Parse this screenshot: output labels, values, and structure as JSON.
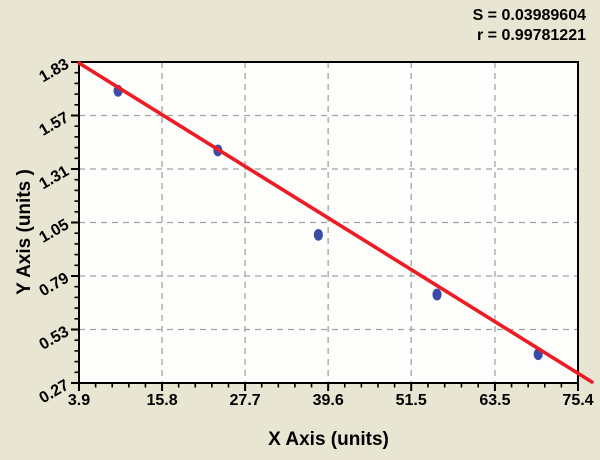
{
  "colors": {
    "background": "#e9e5d3",
    "plot_background": "#fdfdfb",
    "grid": "#a3a3a3",
    "axis": "#000000",
    "fit_line": "#ed1c24",
    "point": "#3b4ca7",
    "text": "#000000"
  },
  "chart_data": {
    "type": "scatter",
    "title": "",
    "xlabel": "X Axis (units)",
    "ylabel": "Y Axis (units )",
    "xlim": [
      3.9,
      75.4
    ],
    "ylim": [
      0.27,
      1.83
    ],
    "x_ticks": [
      3.9,
      15.8,
      27.7,
      39.6,
      51.5,
      63.5,
      75.4
    ],
    "x_tick_labels": [
      "3.9",
      "15.8",
      "27.7",
      "39.6",
      "51.5",
      "63.5",
      "75.4"
    ],
    "y_ticks": [
      1.83,
      1.57,
      1.31,
      1.05,
      0.79,
      0.53,
      0.27
    ],
    "y_tick_labels": [
      "1.83",
      "1.57",
      "1.31",
      "1.05",
      "0.79",
      "0.53",
      "0.27"
    ],
    "minor_divisions": 5,
    "grid": true,
    "legend": false,
    "points": [
      {
        "x": 9.5,
        "y": 1.69
      },
      {
        "x": 23.8,
        "y": 1.4
      },
      {
        "x": 38.2,
        "y": 0.99
      },
      {
        "x": 55.2,
        "y": 0.7
      },
      {
        "x": 69.7,
        "y": 0.41
      }
    ],
    "fit_line": {
      "x1": 3.9,
      "y1": 1.825,
      "x2": 77.4,
      "y2": 0.275
    },
    "annotations": [
      "S = 0.03989604",
      "r = 0.99781221"
    ],
    "fit_stats": {
      "S": "0.03989604",
      "r": "0.99781221"
    }
  }
}
